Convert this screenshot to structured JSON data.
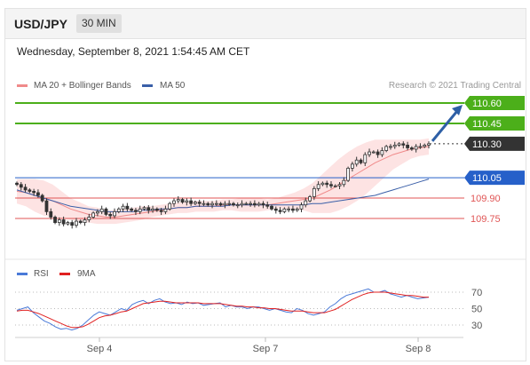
{
  "header": {
    "symbol": "USD/JPY",
    "timeframe": "30 MIN"
  },
  "datetime": "Wednesday, September 8, 2021 1:54:45 AM CET",
  "credit": "Research © 2021 Trading Central",
  "colors": {
    "support_resistance": "#e05555",
    "target": "#4caf1a",
    "pivot": "#2660c9",
    "last_price": "#333333",
    "bollinger_fill": "#fde3e3",
    "ma20": "#f08a8a",
    "ma50": "#3a5fa8",
    "rsi": "#4a7ad8",
    "rsi_ma": "#e02020",
    "arrow": "#2e5fa6"
  },
  "chart_data": [
    {
      "type": "candlestick",
      "legend": [
        "MA 20 + Bollinger Bands",
        "MA 50"
      ],
      "ylim": [
        109.65,
        110.72
      ],
      "levels": [
        {
          "value": 110.6,
          "label": "110.60",
          "kind": "target"
        },
        {
          "value": 110.45,
          "label": "110.45",
          "kind": "target"
        },
        {
          "value": 110.3,
          "label": "110.30",
          "kind": "last"
        },
        {
          "value": 110.05,
          "label": "110.05",
          "kind": "pivot"
        },
        {
          "value": 109.9,
          "label": "109.90",
          "kind": "support"
        },
        {
          "value": 109.75,
          "label": "109.75",
          "kind": "support"
        }
      ],
      "close": [
        110.0,
        109.98,
        109.96,
        109.95,
        109.94,
        109.92,
        109.88,
        109.8,
        109.76,
        109.72,
        109.74,
        109.71,
        109.72,
        109.7,
        109.73,
        109.72,
        109.74,
        109.76,
        109.79,
        109.8,
        109.82,
        109.78,
        109.77,
        109.8,
        109.82,
        109.84,
        109.82,
        109.81,
        109.8,
        109.82,
        109.83,
        109.81,
        109.82,
        109.81,
        109.8,
        109.82,
        109.86,
        109.88,
        109.89,
        109.87,
        109.88,
        109.86,
        109.87,
        109.86,
        109.86,
        109.85,
        109.86,
        109.86,
        109.85,
        109.86,
        109.86,
        109.85,
        109.85,
        109.86,
        109.86,
        109.86,
        109.85,
        109.86,
        109.85,
        109.84,
        109.82,
        109.81,
        109.8,
        109.82,
        109.82,
        109.81,
        109.82,
        109.85,
        109.88,
        109.91,
        109.97,
        110.0,
        110.01,
        110.0,
        109.99,
        109.99,
        110.0,
        110.03,
        110.12,
        110.15,
        110.18,
        110.16,
        110.22,
        110.24,
        110.24,
        110.22,
        110.25,
        110.28,
        110.28,
        110.29,
        110.3,
        110.29,
        110.27,
        110.26,
        110.28,
        110.28,
        110.29,
        110.3
      ],
      "ma20": [
        109.95,
        109.94,
        109.92,
        109.9,
        109.88,
        109.85,
        109.82,
        109.8,
        109.78,
        109.77,
        109.76,
        109.76,
        109.77,
        109.78,
        109.79,
        109.8,
        109.81,
        109.82,
        109.83,
        109.83,
        109.84,
        109.84,
        109.84,
        109.85,
        109.85,
        109.85,
        109.85,
        109.85,
        109.85,
        109.86,
        109.87,
        109.88,
        109.89,
        109.9,
        109.93,
        109.96,
        110.0,
        110.04,
        110.08,
        110.12,
        110.16,
        110.19,
        110.22,
        110.24,
        110.26,
        110.27,
        110.28
      ],
      "ma50": [
        109.96,
        109.94,
        109.92,
        109.9,
        109.88,
        109.86,
        109.84,
        109.83,
        109.82,
        109.81,
        109.8,
        109.8,
        109.8,
        109.8,
        109.81,
        109.81,
        109.82,
        109.82,
        109.83,
        109.83,
        109.84,
        109.84,
        109.84,
        109.84,
        109.85,
        109.85,
        109.85,
        109.85,
        109.85,
        109.85,
        109.85,
        109.85,
        109.85,
        109.86,
        109.86,
        109.87,
        109.88,
        109.89,
        109.9,
        109.91,
        109.92,
        109.94,
        109.96,
        109.98,
        110.0,
        110.02,
        110.04
      ],
      "bb_width": [
        0.09,
        0.1,
        0.12,
        0.13,
        0.12,
        0.1,
        0.08,
        0.07,
        0.06,
        0.06,
        0.05,
        0.05,
        0.05,
        0.05,
        0.05,
        0.04,
        0.04,
        0.04,
        0.04,
        0.04,
        0.04,
        0.04,
        0.04,
        0.04,
        0.04,
        0.05,
        0.05,
        0.05,
        0.04,
        0.04,
        0.05,
        0.06,
        0.08,
        0.11,
        0.14,
        0.17,
        0.19,
        0.2,
        0.2,
        0.19,
        0.17,
        0.14,
        0.11,
        0.09,
        0.07,
        0.06,
        0.06
      ],
      "arrow": {
        "from_value": 110.3,
        "to_value": 110.6
      }
    },
    {
      "type": "line",
      "legend": [
        "RSI",
        "9MA"
      ],
      "ylim": [
        20,
        80
      ],
      "yticks": [
        70,
        50,
        30
      ],
      "x_labels": [
        "Sep 4",
        "Sep 7",
        "Sep 8"
      ],
      "rsi": [
        48,
        50,
        52,
        45,
        40,
        35,
        32,
        28,
        25,
        26,
        24,
        26,
        30,
        36,
        42,
        46,
        44,
        42,
        46,
        50,
        48,
        55,
        58,
        60,
        56,
        60,
        62,
        58,
        56,
        57,
        55,
        58,
        56,
        57,
        54,
        55,
        56,
        57,
        52,
        54,
        52,
        52,
        50,
        52,
        52,
        50,
        48,
        50,
        48,
        46,
        45,
        50,
        48,
        44,
        42,
        44,
        46,
        52,
        56,
        62,
        66,
        68,
        70,
        72,
        74,
        70,
        70,
        72,
        68,
        66,
        64,
        66,
        64,
        62,
        63,
        64
      ],
      "rsi_ma": [
        47,
        48,
        48,
        46,
        44,
        41,
        38,
        35,
        32,
        29,
        27,
        27,
        28,
        31,
        35,
        39,
        41,
        42,
        44,
        46,
        47,
        50,
        53,
        56,
        57,
        58,
        59,
        59,
        58,
        57,
        57,
        57,
        57,
        57,
        56,
        56,
        56,
        56,
        55,
        54,
        53,
        53,
        52,
        52,
        51,
        51,
        50,
        50,
        49,
        48,
        47,
        47,
        47,
        46,
        45,
        45,
        45,
        47,
        49,
        53,
        57,
        61,
        64,
        67,
        69,
        70,
        70,
        70,
        69,
        68,
        67,
        66,
        66,
        65,
        64,
        64
      ]
    }
  ]
}
